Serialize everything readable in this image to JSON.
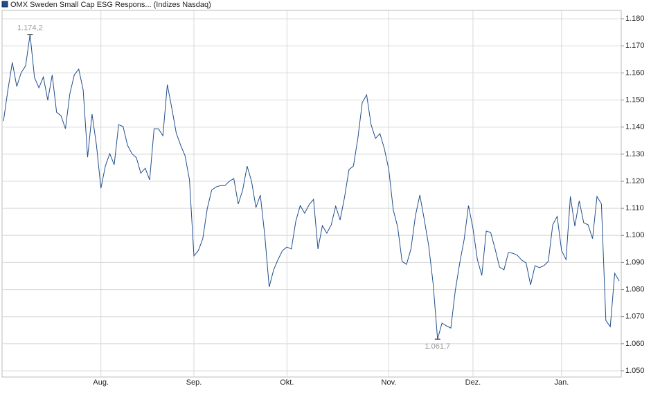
{
  "chart_data": {
    "type": "line",
    "title": "OMX Sweden Small Cap ESG Respons... (Indizes Nasdaq)",
    "color": "#1f4e8c",
    "max_label": "1.174,2",
    "min_label": "1.061,7",
    "values": [
      1142.2,
      1153.7,
      1163.9,
      1155.0,
      1160.1,
      1162.6,
      1174.2,
      1158.3,
      1154.5,
      1158.5,
      1149.9,
      1159.3,
      1145.5,
      1144.2,
      1139.4,
      1152.4,
      1159.3,
      1161.4,
      1153.7,
      1128.9,
      1144.8,
      1133.3,
      1117.4,
      1125.6,
      1130.2,
      1126.1,
      1140.9,
      1140.2,
      1133.3,
      1130.2,
      1128.7,
      1123.0,
      1124.8,
      1120.5,
      1139.4,
      1139.4,
      1136.8,
      1155.7,
      1147.1,
      1137.9,
      1133.3,
      1129.4,
      1120.5,
      1092.4,
      1094.4,
      1098.8,
      1109.8,
      1116.7,
      1117.9,
      1118.4,
      1118.4,
      1120.0,
      1121.0,
      1111.6,
      1116.7,
      1125.6,
      1120.0,
      1110.3,
      1114.9,
      1100.1,
      1080.9,
      1087.3,
      1091.1,
      1094.4,
      1095.7,
      1095.0,
      1105.2,
      1111.0,
      1108.2,
      1111.3,
      1113.3,
      1095.0,
      1103.6,
      1100.8,
      1103.9,
      1110.8,
      1105.7,
      1114.1,
      1124.3,
      1125.6,
      1135.8,
      1149.1,
      1151.9,
      1140.9,
      1135.8,
      1137.6,
      1132.0,
      1124.3,
      1109.5,
      1103.1,
      1090.4,
      1089.3,
      1095.0,
      1107.2,
      1114.9,
      1105.9,
      1096.2,
      1082.2,
      1061.7,
      1067.6,
      1066.6,
      1065.8,
      1079.6,
      1089.8,
      1098.5,
      1111.0,
      1102.6,
      1091.1,
      1085.2,
      1101.6,
      1101.1,
      1095.0,
      1088.3,
      1087.3,
      1093.7,
      1093.4,
      1092.7,
      1090.9,
      1089.8,
      1081.7,
      1088.8,
      1088.1,
      1088.8,
      1090.4,
      1103.9,
      1107.0,
      1094.4,
      1091.1,
      1114.4,
      1103.4,
      1112.8,
      1104.7,
      1103.9,
      1098.8,
      1114.4,
      1111.6,
      1068.6,
      1066.3,
      1086.0,
      1083.2
    ],
    "categories": [
      null,
      null,
      null,
      null,
      null,
      null,
      null,
      null,
      null,
      null,
      null,
      null,
      null,
      null,
      null,
      null,
      null,
      null,
      null,
      null,
      null,
      null,
      "Aug.",
      null,
      null,
      null,
      null,
      null,
      null,
      null,
      null,
      null,
      null,
      null,
      null,
      null,
      null,
      null,
      null,
      null,
      null,
      null,
      null,
      "Sep.",
      null,
      null,
      null,
      null,
      null,
      null,
      null,
      null,
      null,
      null,
      null,
      null,
      null,
      null,
      null,
      null,
      null,
      null,
      null,
      null,
      "Okt.",
      null,
      null,
      null,
      null,
      null,
      null,
      null,
      null,
      null,
      null,
      null,
      null,
      null,
      null,
      null,
      null,
      null,
      null,
      null,
      null,
      null,
      null,
      "Nov.",
      null,
      null,
      null,
      null,
      null,
      null,
      null,
      null,
      null,
      null,
      null,
      null,
      null,
      null,
      null,
      null,
      null,
      null,
      "Dez.",
      null,
      null,
      null,
      null,
      null,
      null,
      null,
      null,
      null,
      null,
      null,
      null,
      null,
      null,
      null,
      null,
      null,
      null,
      null,
      "Jan.",
      null,
      null,
      null,
      null,
      null,
      null,
      null,
      null,
      null,
      null,
      null,
      null,
      null
    ],
    "ylim": [
      1047.7,
      1183.1
    ],
    "yticks": [
      {
        "value": 1050,
        "label": "1.050"
      },
      {
        "value": 1060,
        "label": "1.060"
      },
      {
        "value": 1070,
        "label": "1.070"
      },
      {
        "value": 1080,
        "label": "1.080"
      },
      {
        "value": 1090,
        "label": "1.090"
      },
      {
        "value": 1100,
        "label": "1.100"
      },
      {
        "value": 1110,
        "label": "1.110"
      },
      {
        "value": 1120,
        "label": "1.120"
      },
      {
        "value": 1130,
        "label": "1.130"
      },
      {
        "value": 1140,
        "label": "1.140"
      },
      {
        "value": 1150,
        "label": "1.150"
      },
      {
        "value": 1160,
        "label": "1.160"
      },
      {
        "value": 1170,
        "label": "1.170"
      },
      {
        "value": 1180,
        "label": "1.180"
      }
    ],
    "grid": true
  }
}
